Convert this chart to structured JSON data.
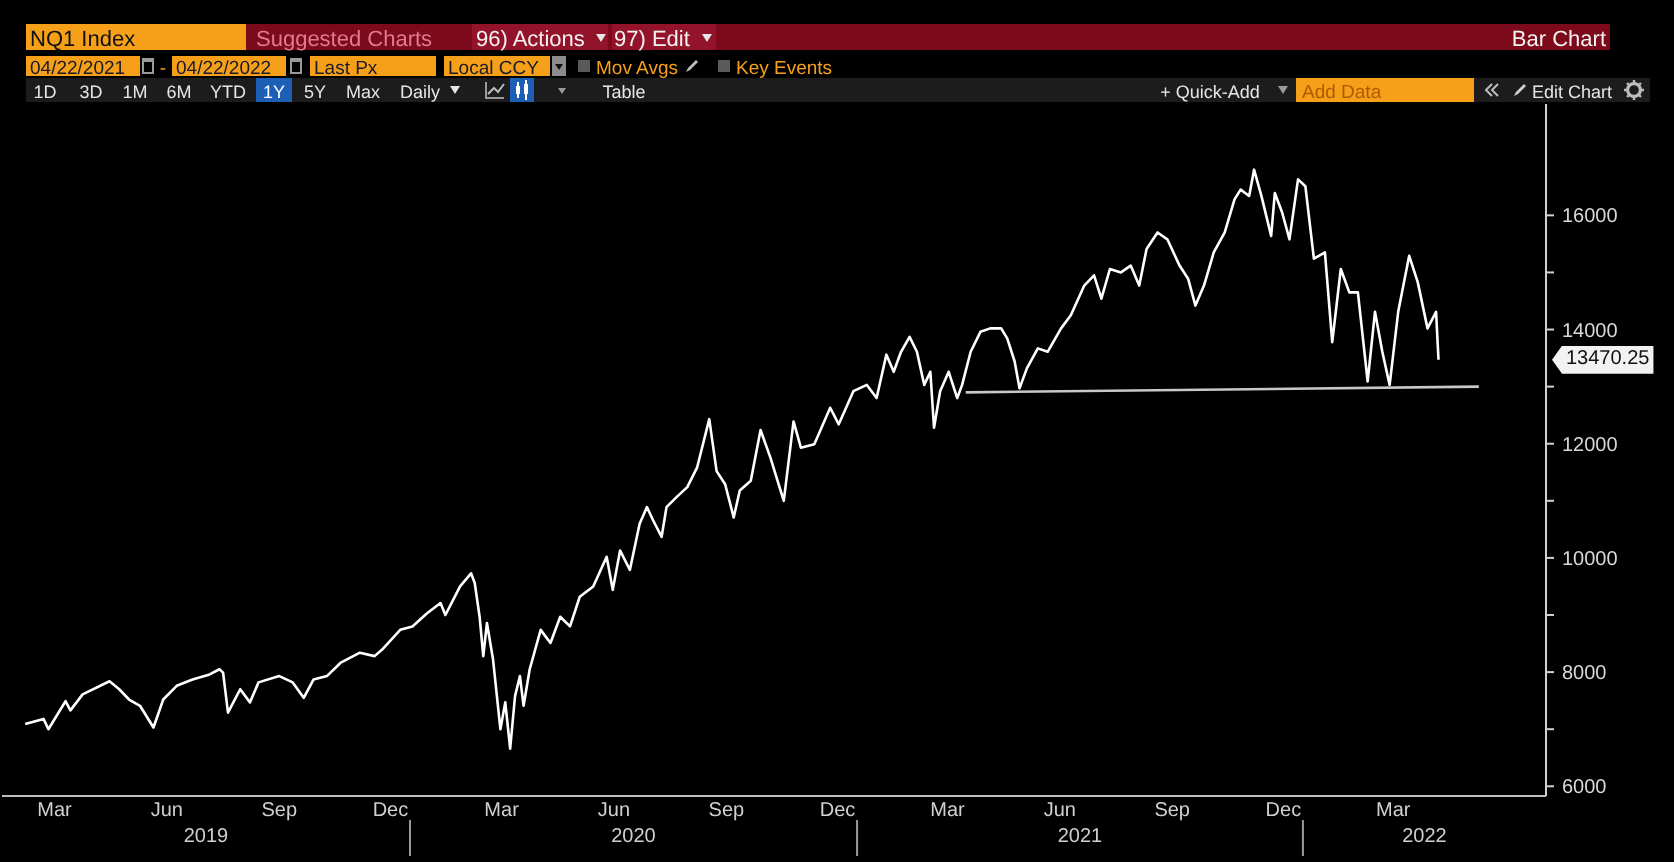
{
  "chart_data": {
    "type": "line",
    "title": "NQ1 Index",
    "annotations": [
      "Suggested Charts",
      "96) Actions",
      "97) Edit",
      "Bar Chart",
      "04/22/2021",
      "-",
      "04/22/2022",
      "Last Px",
      "Local CCY",
      "Mov Avgs",
      "Key Events",
      "1D",
      "3D",
      "1M",
      "6M",
      "YTD",
      "1Y",
      "5Y",
      "Max",
      "Daily",
      "Table",
      "+ Quick-Add",
      "Add Data",
      "Edit Chart",
      "13470.25",
      "2019",
      "2020",
      "2021",
      "2022"
    ],
    "x": [
      "2019-02-20",
      "2019-03-07",
      "2019-03-11",
      "2019-03-25",
      "2019-03-29",
      "2019-04-08",
      "2019-04-30",
      "2019-05-08",
      "2019-05-16",
      "2019-05-25",
      "2019-06-05",
      "2019-06-13",
      "2019-06-24",
      "2019-07-07",
      "2019-07-21",
      "2019-07-29",
      "2019-08-01",
      "2019-08-05",
      "2019-08-15",
      "2019-08-23",
      "2019-08-30",
      "2019-09-16",
      "2019-09-27",
      "2019-10-06",
      "2019-10-14",
      "2019-10-25",
      "2019-11-05",
      "2019-11-21",
      "2019-12-03",
      "2019-12-09",
      "2019-12-24",
      "2020-01-03",
      "2020-01-15",
      "2020-01-26",
      "2020-01-30",
      "2020-02-11",
      "2020-02-20",
      "2020-02-23",
      "2020-02-27",
      "2020-03-01",
      "2020-03-04",
      "2020-03-09",
      "2020-03-15",
      "2020-03-19",
      "2020-03-23",
      "2020-03-27",
      "2020-03-31",
      "2020-04-03",
      "2020-04-08",
      "2020-04-17",
      "2020-04-25",
      "2020-05-03",
      "2020-05-11",
      "2020-05-19",
      "2020-05-30",
      "2020-06-10",
      "2020-06-15",
      "2020-06-21",
      "2020-06-29",
      "2020-07-07",
      "2020-07-13",
      "2020-07-18",
      "2020-07-25",
      "2020-07-29",
      "2020-08-06",
      "2020-08-15",
      "2020-08-23",
      "2020-09-02",
      "2020-09-08",
      "2020-09-15",
      "2020-09-22",
      "2020-09-27",
      "2020-10-06",
      "2020-10-14",
      "2020-10-22",
      "2020-11-02",
      "2020-11-10",
      "2020-11-16",
      "2020-11-27",
      "2020-12-10",
      "2020-12-17",
      "2020-12-29",
      "2021-01-09",
      "2021-01-17",
      "2021-01-25",
      "2021-01-31",
      "2021-02-06",
      "2021-02-13",
      "2021-02-19",
      "2021-02-25",
      "2021-03-02",
      "2021-03-05",
      "2021-03-10",
      "2021-03-17",
      "2021-03-24",
      "2021-03-28",
      "2021-04-04",
      "2021-04-12",
      "2021-04-20",
      "2021-04-29",
      "2021-05-04",
      "2021-05-10",
      "2021-05-14",
      "2021-05-20",
      "2021-05-29",
      "2021-06-06",
      "2021-06-17",
      "2021-06-25",
      "2021-07-06",
      "2021-07-14",
      "2021-07-20",
      "2021-07-27",
      "2021-08-05",
      "2021-08-13",
      "2021-08-20",
      "2021-08-26",
      "2021-09-04",
      "2021-09-12",
      "2021-09-22",
      "2021-09-29",
      "2021-10-05",
      "2021-10-12",
      "2021-10-20",
      "2021-10-29",
      "2021-11-06",
      "2021-11-11",
      "2021-11-18",
      "2021-11-22",
      "2021-11-28",
      "2021-12-06",
      "2021-12-09",
      "2021-12-15",
      "2021-12-21",
      "2021-12-28",
      "2022-01-03",
      "2022-01-10",
      "2022-01-19",
      "2022-01-25",
      "2022-02-01",
      "2022-02-08",
      "2022-02-15",
      "2022-02-23",
      "2022-03-01",
      "2022-03-07",
      "2022-03-13",
      "2022-03-20",
      "2022-03-29",
      "2022-04-05",
      "2022-04-13",
      "2022-04-20",
      "2022-04-22"
    ],
    "series": [
      {
        "color": "#ffffff",
        "values": [
          7090,
          7180,
          7000,
          7490,
          7330,
          7610,
          7840,
          7700,
          7520,
          7410,
          7030,
          7520,
          7760,
          7870,
          7960,
          8050,
          7990,
          7290,
          7700,
          7470,
          7820,
          7930,
          7820,
          7550,
          7870,
          7930,
          8160,
          8340,
          8280,
          8390,
          8740,
          8800,
          9030,
          9210,
          9000,
          9500,
          9730,
          9560,
          8970,
          8280,
          8860,
          8220,
          7000,
          7470,
          6660,
          7580,
          7930,
          7410,
          8050,
          8740,
          8510,
          8970,
          8800,
          9320,
          9500,
          10020,
          9440,
          10130,
          9790,
          10600,
          10890,
          10660,
          10370,
          10890,
          11060,
          11240,
          11580,
          12430,
          11520,
          11290,
          10710,
          11180,
          11350,
          12240,
          11760,
          11000,
          12390,
          11930,
          11990,
          12630,
          12340,
          12920,
          13030,
          12800,
          13560,
          13260,
          13610,
          13870,
          13610,
          13030,
          13260,
          12280,
          12920,
          13260,
          12800,
          13030,
          13610,
          13960,
          14020,
          14020,
          13840,
          13440,
          12970,
          13320,
          13670,
          13610,
          14020,
          14250,
          14770,
          14950,
          14540,
          15060,
          15000,
          15120,
          14770,
          15410,
          15700,
          15580,
          15120,
          14890,
          14420,
          14770,
          15350,
          15700,
          16280,
          16450,
          16340,
          16800,
          16340,
          15640,
          16390,
          16050,
          15580,
          16630,
          16510,
          15240,
          15350,
          13780,
          15060,
          14650,
          14650,
          13090,
          14310,
          13610,
          13030,
          14310,
          15290,
          14830,
          14020,
          14310,
          13470.25
        ]
      },
      {
        "type": "line",
        "color": "#c8c8c8",
        "x": [
          "2021-03-31",
          "2022-05-25"
        ],
        "values": [
          12900,
          13000
        ]
      }
    ],
    "xlim": [
      "2019-02-01",
      "2022-07-19"
    ],
    "xticks": [
      {
        "value": "2019-03-16",
        "label": "Mar"
      },
      {
        "value": "2019-06-16",
        "label": "Jun"
      },
      {
        "value": "2019-09-16",
        "label": "Sep"
      },
      {
        "value": "2019-12-16",
        "label": "Dec"
      },
      {
        "value": "2020-03-16",
        "label": "Mar"
      },
      {
        "value": "2020-06-16",
        "label": "Jun"
      },
      {
        "value": "2020-09-16",
        "label": "Sep"
      },
      {
        "value": "2020-12-16",
        "label": "Dec"
      },
      {
        "value": "2021-03-16",
        "label": "Mar"
      },
      {
        "value": "2021-06-16",
        "label": "Jun"
      },
      {
        "value": "2021-09-16",
        "label": "Sep"
      },
      {
        "value": "2021-12-16",
        "label": "Dec"
      },
      {
        "value": "2022-03-16",
        "label": "Mar"
      }
    ],
    "ylim": [
      5830,
      17950
    ],
    "yticks": [
      6000,
      {
        "value": 7000,
        "label": null
      },
      8000,
      {
        "value": 9000,
        "label": null
      },
      10000,
      {
        "value": 11000,
        "label": null
      },
      12000,
      {
        "value": 13000,
        "label": null
      },
      14000,
      {
        "value": 15000,
        "label": null
      },
      16000
    ]
  }
}
